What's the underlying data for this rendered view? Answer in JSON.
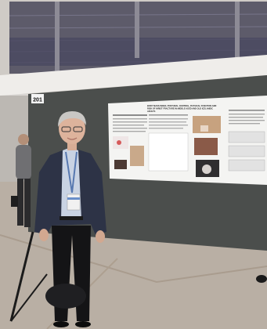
{
  "photo": {
    "board_number": "201",
    "poster": {
      "header": "BODY MASS INDEX, POSTURAL CONTROL, PHYSICAL FUNCTION AND RISK OF WRIST FRACTURE IN MIDDLE AGED AND OLD ICELANDIC ADULTS"
    },
    "colors": {
      "board": "#4b4e4c",
      "poster_bg": "#f4f4f2",
      "floor": "#b9afa4",
      "ceiling": "#e8e6e2",
      "jacket": "#2d3346",
      "trousers": "#141416"
    }
  }
}
